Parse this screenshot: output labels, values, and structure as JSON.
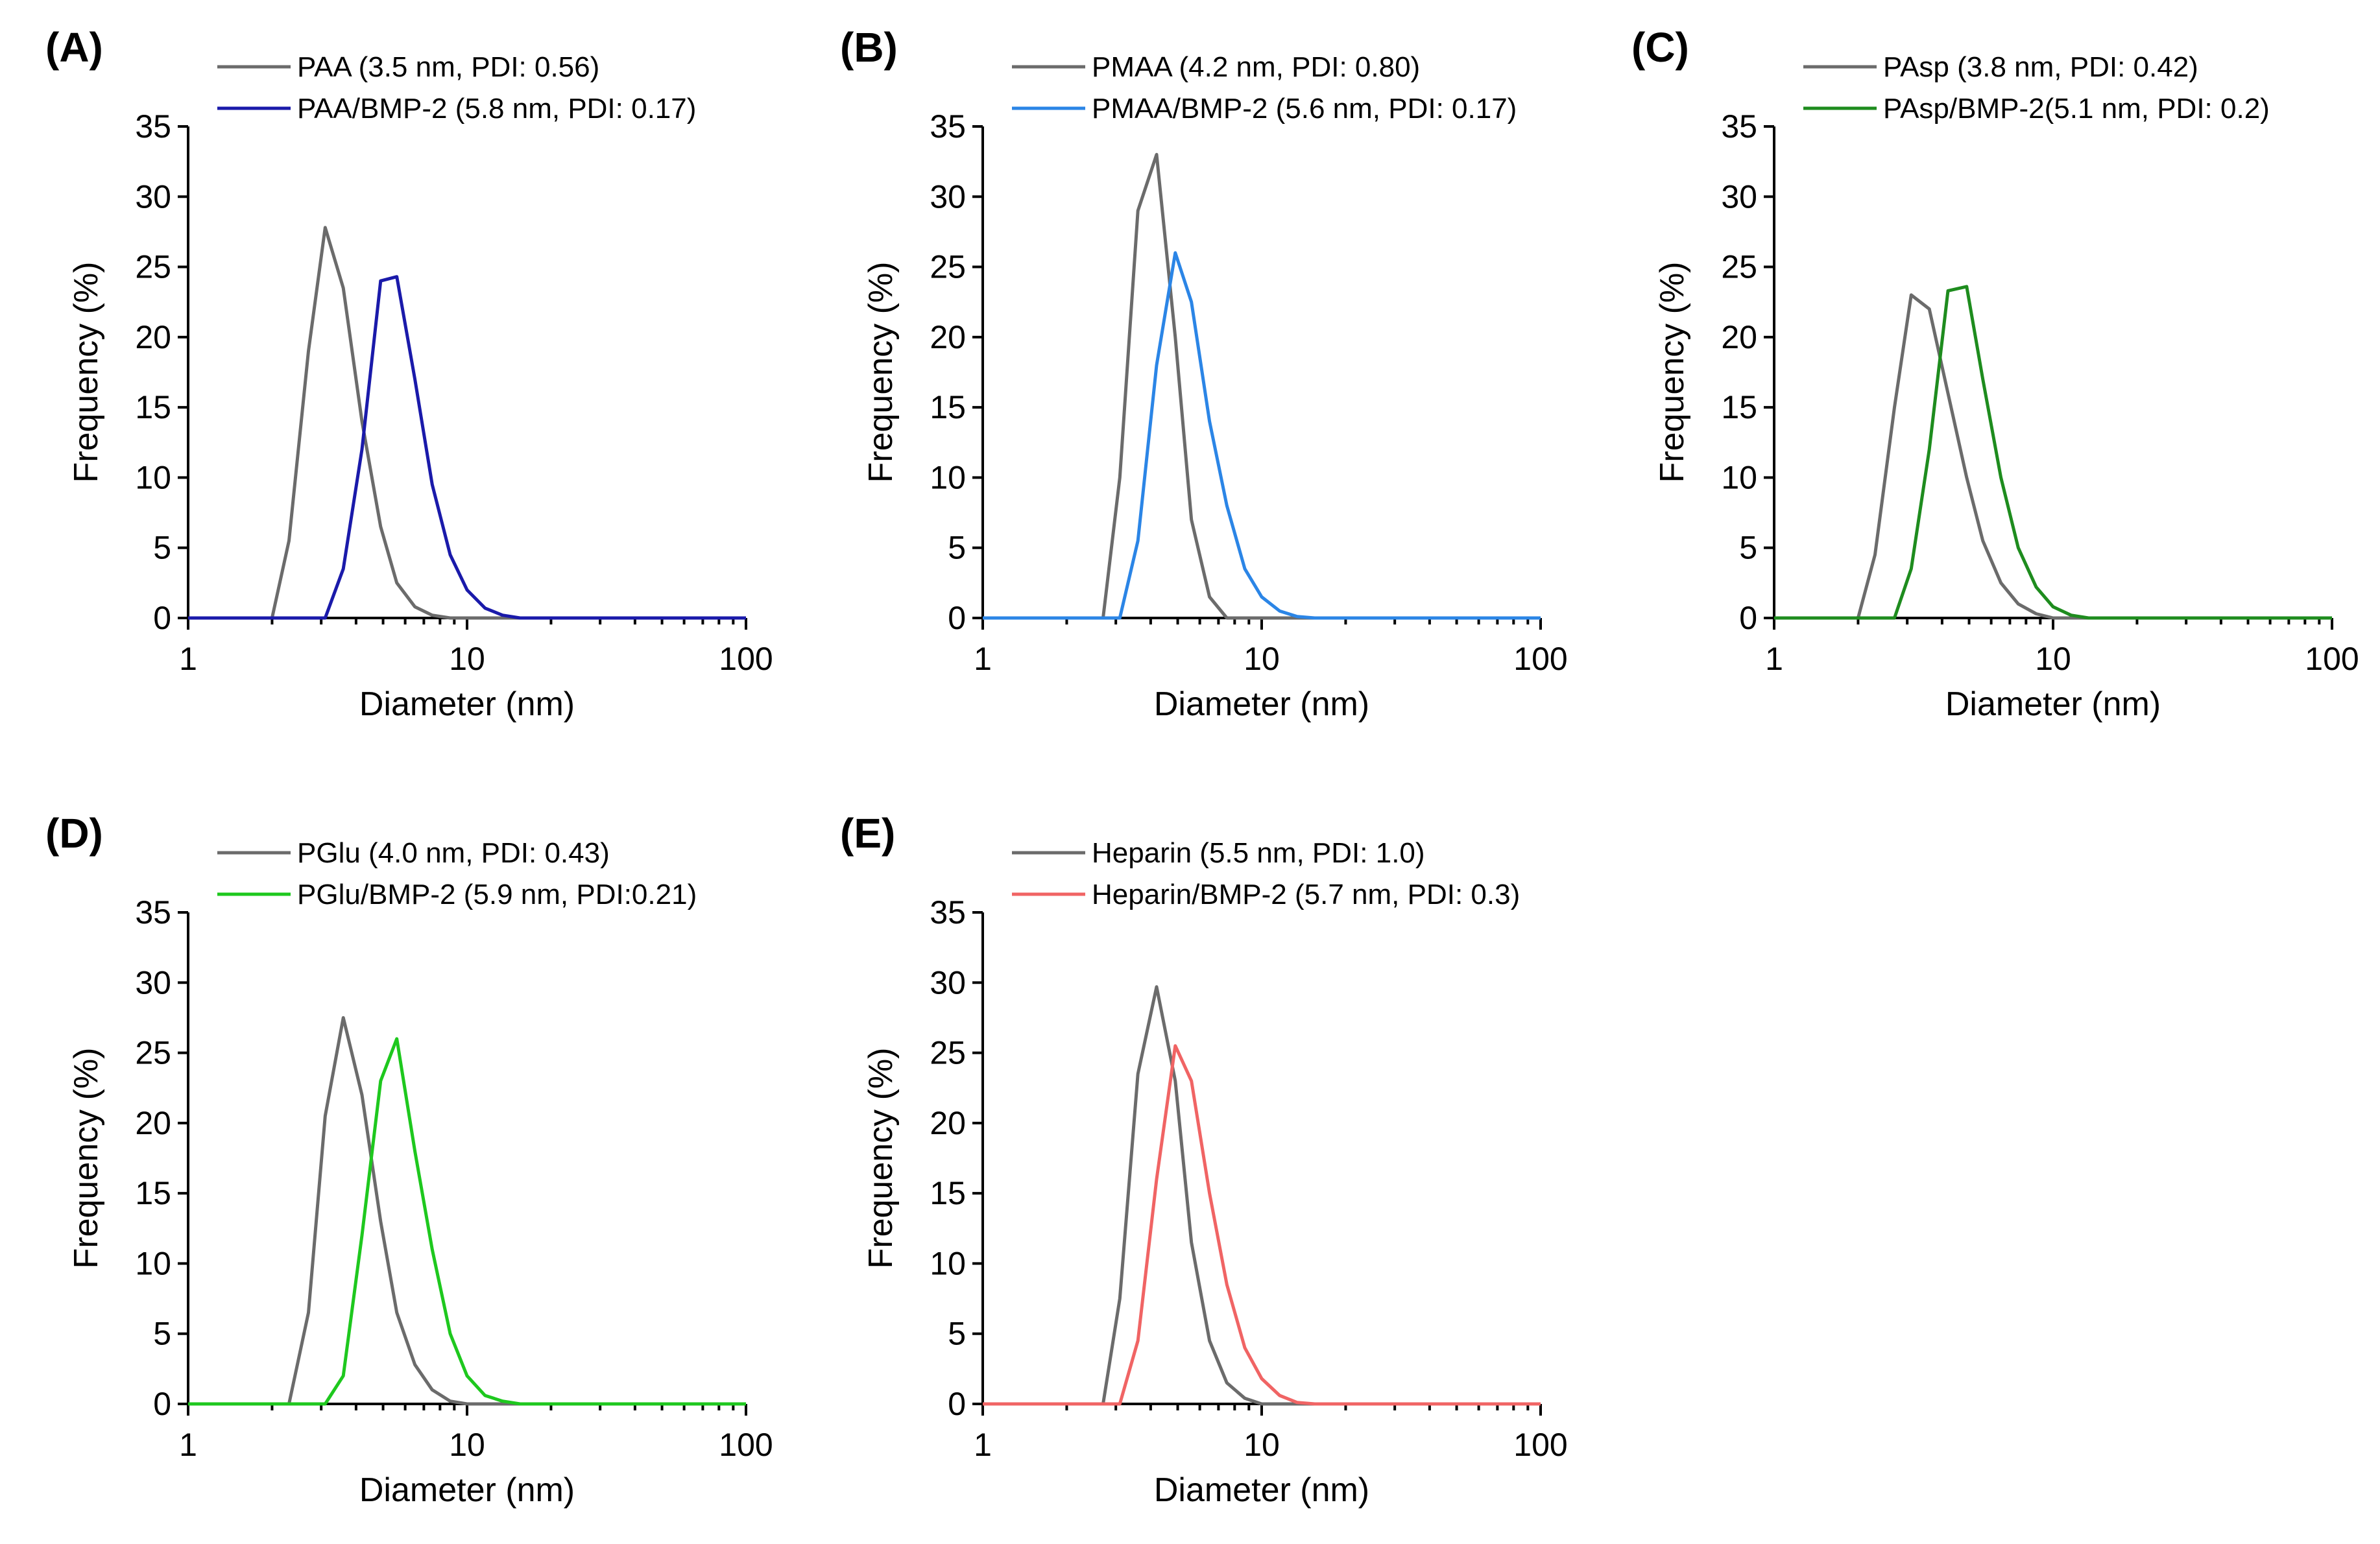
{
  "chart_data": [
    {
      "type": "line",
      "panel": "(A)",
      "xlabel": "Diameter (nm)",
      "ylabel": "Frequency (%)",
      "xscale": "log",
      "xlim": [
        1,
        100
      ],
      "ylim": [
        0,
        35
      ],
      "xticks": [
        "1",
        "10",
        "100"
      ],
      "yticks": [
        "0",
        "5",
        "10",
        "15",
        "20",
        "25",
        "30",
        "35"
      ],
      "legend_position": "top",
      "series": [
        {
          "name": "PAA (3.5 nm, PDI: 0.56)",
          "color": "#6b6b6b",
          "x": [
            1,
            2.0,
            2.3,
            2.7,
            3.1,
            3.6,
            4.2,
            4.9,
            5.6,
            6.5,
            7.5,
            8.7,
            10,
            100
          ],
          "y": [
            0,
            0,
            5.5,
            19,
            27.8,
            23.5,
            14,
            6.5,
            2.5,
            0.8,
            0.2,
            0,
            0,
            0
          ]
        },
        {
          "name": "PAA/BMP-2 (5.8 nm, PDI: 0.17)",
          "color": "#1a1aaa",
          "x": [
            1,
            3.1,
            3.6,
            4.2,
            4.9,
            5.6,
            6.5,
            7.5,
            8.7,
            10,
            11.6,
            13.4,
            15.5,
            20,
            100
          ],
          "y": [
            0,
            0,
            3.5,
            12,
            24,
            24.3,
            17,
            9.5,
            4.5,
            2,
            0.7,
            0.2,
            0,
            0,
            0
          ]
        }
      ]
    },
    {
      "type": "line",
      "panel": "(B)",
      "xlabel": "Diameter (nm)",
      "ylabel": "Frequency (%)",
      "xscale": "log",
      "xlim": [
        1,
        100
      ],
      "ylim": [
        0,
        35
      ],
      "xticks": [
        "1",
        "10",
        "100"
      ],
      "yticks": [
        "0",
        "5",
        "10",
        "15",
        "20",
        "25",
        "30",
        "35"
      ],
      "legend_position": "top",
      "series": [
        {
          "name": "PMAA (4.2 nm, PDI: 0.80)",
          "color": "#6b6b6b",
          "x": [
            1,
            2.7,
            3.1,
            3.6,
            4.2,
            4.9,
            5.6,
            6.5,
            7.5,
            100
          ],
          "y": [
            0,
            0,
            10,
            29,
            33,
            20,
            7,
            1.5,
            0,
            0
          ]
        },
        {
          "name": "PMAA/BMP-2 (5.6 nm, PDI: 0.17)",
          "color": "#2b85e6",
          "x": [
            1,
            3.1,
            3.6,
            4.2,
            4.9,
            5.6,
            6.5,
            7.5,
            8.7,
            10,
            11.6,
            13.4,
            15.5,
            20,
            100
          ],
          "y": [
            0,
            0,
            5.5,
            18,
            26,
            22.5,
            14,
            8,
            3.5,
            1.5,
            0.5,
            0.1,
            0,
            0,
            0
          ]
        }
      ]
    },
    {
      "type": "line",
      "panel": "(C)",
      "xlabel": "Diameter (nm)",
      "ylabel": "Frequency (%)",
      "xscale": "log",
      "xlim": [
        1,
        100
      ],
      "ylim": [
        0,
        35
      ],
      "xticks": [
        "1",
        "10",
        "100"
      ],
      "yticks": [
        "0",
        "5",
        "10",
        "15",
        "20",
        "25",
        "30",
        "35"
      ],
      "legend_position": "top",
      "series": [
        {
          "name": "PAsp (3.8 nm, PDI: 0.42)",
          "color": "#6b6b6b",
          "x": [
            1,
            2.0,
            2.3,
            2.7,
            3.1,
            3.6,
            4.2,
            4.9,
            5.6,
            6.5,
            7.5,
            8.7,
            10,
            11.6,
            100
          ],
          "y": [
            0,
            0,
            4.5,
            15,
            23,
            22,
            16,
            10,
            5.5,
            2.5,
            1,
            0.3,
            0,
            0,
            0
          ]
        },
        {
          "name": "PAsp/BMP-2(5.1 nm, PDI: 0.2)",
          "color": "#1e8c1e",
          "x": [
            1,
            2.7,
            3.1,
            3.6,
            4.2,
            4.9,
            5.6,
            6.5,
            7.5,
            8.7,
            10,
            11.6,
            13.4,
            15.5,
            100
          ],
          "y": [
            0,
            0,
            3.5,
            12,
            23.3,
            23.6,
            17,
            10,
            5,
            2.2,
            0.8,
            0.2,
            0,
            0,
            0
          ]
        }
      ]
    },
    {
      "type": "line",
      "panel": "(D)",
      "xlabel": "Diameter (nm)",
      "ylabel": "Frequency (%)",
      "xscale": "log",
      "xlim": [
        1,
        100
      ],
      "ylim": [
        0,
        35
      ],
      "xticks": [
        "1",
        "10",
        "100"
      ],
      "yticks": [
        "0",
        "5",
        "10",
        "15",
        "20",
        "25",
        "30",
        "35"
      ],
      "legend_position": "top",
      "series": [
        {
          "name": "PGlu (4.0 nm, PDI: 0.43)",
          "color": "#6b6b6b",
          "x": [
            1,
            2.3,
            2.7,
            3.1,
            3.6,
            4.2,
            4.9,
            5.6,
            6.5,
            7.5,
            8.7,
            10,
            100
          ],
          "y": [
            0,
            0,
            6.5,
            20.5,
            27.5,
            22,
            13,
            6.5,
            2.8,
            1,
            0.2,
            0,
            0
          ]
        },
        {
          "name": "PGlu/BMP-2 (5.9 nm, PDI:0.21)",
          "color": "#1ec81e",
          "x": [
            1,
            3.1,
            3.6,
            4.2,
            4.9,
            5.6,
            6.5,
            7.5,
            8.7,
            10,
            11.6,
            13.4,
            15.5,
            20,
            100
          ],
          "y": [
            0,
            0,
            2,
            12,
            23,
            26,
            18,
            11,
            5,
            2,
            0.6,
            0.2,
            0,
            0,
            0
          ]
        }
      ]
    },
    {
      "type": "line",
      "panel": "(E)",
      "xlabel": "Diameter (nm)",
      "ylabel": "Frequency (%)",
      "xscale": "log",
      "xlim": [
        1,
        100
      ],
      "ylim": [
        0,
        35
      ],
      "xticks": [
        "1",
        "10",
        "100"
      ],
      "yticks": [
        "0",
        "5",
        "10",
        "15",
        "20",
        "25",
        "30",
        "35"
      ],
      "legend_position": "top",
      "series": [
        {
          "name": "Heparin (5.5 nm, PDI: 1.0)",
          "color": "#6b6b6b",
          "x": [
            1,
            2.7,
            3.1,
            3.6,
            4.2,
            4.9,
            5.6,
            6.5,
            7.5,
            8.7,
            10,
            11.6,
            100
          ],
          "y": [
            0,
            0,
            7.5,
            23.5,
            29.7,
            23,
            11.5,
            4.5,
            1.5,
            0.4,
            0,
            0,
            0
          ]
        },
        {
          "name": "Heparin/BMP-2 (5.7 nm, PDI: 0.3)",
          "color": "#f06464",
          "x": [
            1,
            3.1,
            3.6,
            4.2,
            4.9,
            5.6,
            6.5,
            7.5,
            8.7,
            10,
            11.6,
            13.4,
            15.5,
            20,
            100
          ],
          "y": [
            0,
            0,
            4.5,
            16,
            25.5,
            23,
            15,
            8.5,
            4,
            1.8,
            0.6,
            0.1,
            0,
            0,
            0
          ]
        }
      ]
    }
  ]
}
